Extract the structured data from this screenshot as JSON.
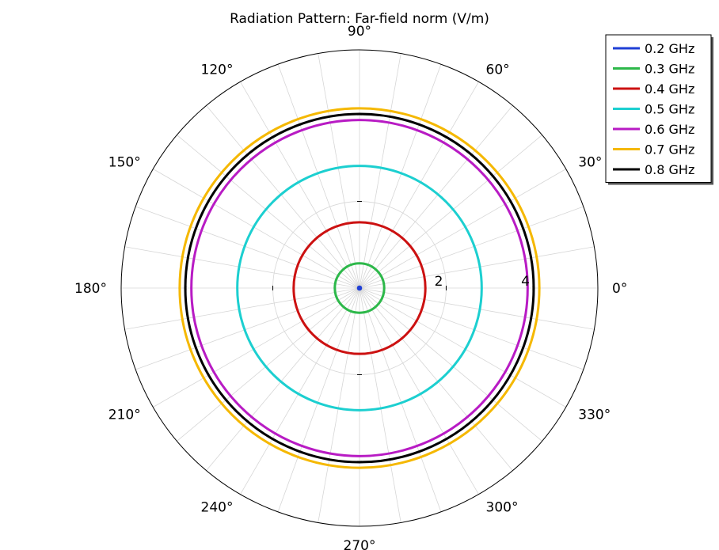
{
  "chart_data": {
    "type": "polar-line",
    "title": "Radiation Pattern: Far-field norm (V/m)",
    "angular_axis": {
      "unit": "degrees",
      "tick_labels": [
        "0°",
        "30°",
        "60°",
        "90°",
        "120°",
        "150°",
        "180°",
        "210°",
        "240°",
        "270°",
        "300°",
        "330°"
      ],
      "tick_values": [
        0,
        30,
        60,
        90,
        120,
        150,
        180,
        210,
        240,
        270,
        300,
        330
      ],
      "minor_gridline_step_deg": 10
    },
    "radial_axis": {
      "range": [
        0,
        5.5
      ],
      "tick_values": [
        2,
        4
      ],
      "tick_labels": [
        "2",
        "4"
      ],
      "gridline_values": [
        2,
        4,
        5.5
      ]
    },
    "grid": true,
    "legend_position": "top-right",
    "series": [
      {
        "name": "0.2 GHz",
        "color": "#1f3fd6",
        "r": 0.02
      },
      {
        "name": "0.3 GHz",
        "color": "#2db84a",
        "r": 0.57
      },
      {
        "name": "0.4 GHz",
        "color": "#cc1111",
        "r": 1.52
      },
      {
        "name": "0.5 GHz",
        "color": "#1ccfd0",
        "r": 2.82
      },
      {
        "name": "0.6 GHz",
        "color": "#b81bc4",
        "r": 3.88
      },
      {
        "name": "0.7 GHz",
        "color": "#f5b800",
        "r": 4.15
      },
      {
        "name": "0.8 GHz",
        "color": "#000000",
        "r": 4.02
      }
    ]
  }
}
